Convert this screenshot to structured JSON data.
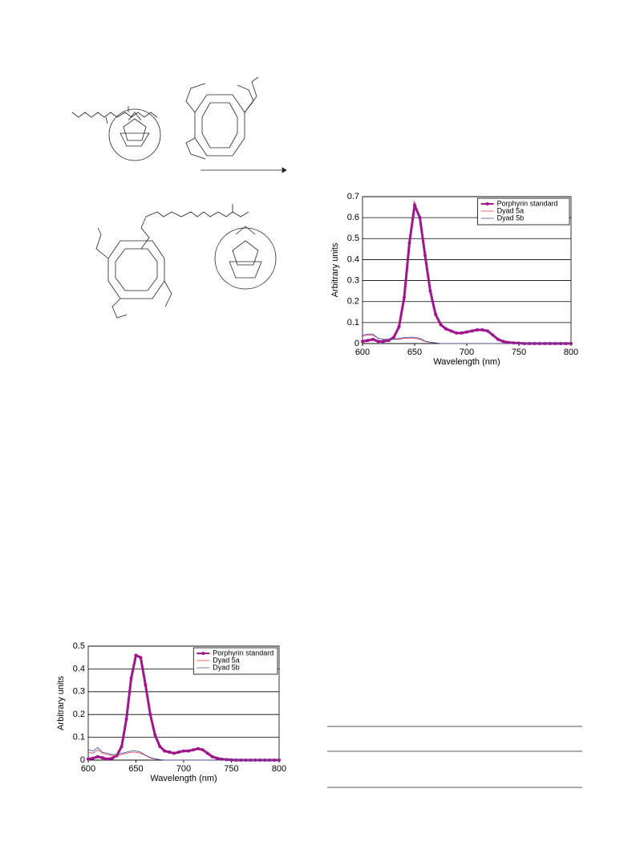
{
  "chart_data": [
    {
      "type": "line",
      "xlabel": "Wavelength (nm)",
      "ylabel": "Arbitrary units",
      "x": [
        600,
        605,
        610,
        615,
        620,
        625,
        630,
        635,
        640,
        645,
        650,
        655,
        660,
        665,
        670,
        675,
        680,
        685,
        690,
        695,
        700,
        705,
        710,
        715,
        720,
        725,
        730,
        735,
        740,
        745,
        750,
        755,
        760,
        765,
        770,
        775,
        780,
        785,
        790,
        795,
        800
      ],
      "series": [
        {
          "name": "Porphyrin standard",
          "color": "#a0148c",
          "markers": true,
          "values": [
            0.01,
            0.015,
            0.02,
            0.01,
            0.01,
            0.015,
            0.03,
            0.08,
            0.22,
            0.48,
            0.66,
            0.6,
            0.42,
            0.25,
            0.14,
            0.09,
            0.07,
            0.06,
            0.05,
            0.05,
            0.055,
            0.06,
            0.065,
            0.065,
            0.06,
            0.04,
            0.02,
            0.01,
            0.005,
            0.003,
            0.002,
            0,
            0,
            0,
            0,
            0,
            0,
            0,
            0,
            0,
            0
          ]
        },
        {
          "name": "Dyad 5a",
          "color": "#e0303a",
          "markers": false,
          "values": [
            0.035,
            0.04,
            0.04,
            0.025,
            0.02,
            0.02,
            0.02,
            0.02,
            0.025,
            0.025,
            0.025,
            0.02,
            0.01,
            0.005,
            0.003,
            0,
            0,
            0,
            0,
            0,
            0,
            0,
            0,
            0,
            0,
            0,
            0,
            0,
            0,
            0,
            0,
            0,
            0,
            0,
            0,
            0,
            0,
            0,
            0,
            0,
            0
          ]
        },
        {
          "name": "Dyad 5b",
          "color": "#4050b0",
          "markers": false,
          "values": [
            0.04,
            0.045,
            0.045,
            0.025,
            0.02,
            0.02,
            0.02,
            0.025,
            0.028,
            0.03,
            0.03,
            0.025,
            0.012,
            0.006,
            0.003,
            0,
            0,
            0,
            0,
            0,
            0,
            0,
            0,
            0,
            0,
            0,
            0,
            0,
            0,
            0,
            0,
            0,
            0,
            0,
            0,
            0,
            0,
            0,
            0,
            0,
            0
          ]
        }
      ],
      "xlim": [
        600,
        800
      ],
      "xticks": [
        600,
        650,
        700,
        750,
        800
      ],
      "ylim": [
        0,
        0.7
      ],
      "yticks": [
        0,
        0.1,
        0.2,
        0.3,
        0.4,
        0.5,
        0.6,
        0.7
      ],
      "grid": true,
      "legend": "upper right"
    },
    {
      "type": "line",
      "xlabel": "Wavelength (nm)",
      "ylabel": "Arbitrary units",
      "x": [
        600,
        605,
        610,
        615,
        620,
        625,
        630,
        635,
        640,
        645,
        650,
        655,
        660,
        665,
        670,
        675,
        680,
        685,
        690,
        695,
        700,
        705,
        710,
        715,
        720,
        725,
        730,
        735,
        740,
        745,
        750,
        755,
        760,
        765,
        770,
        775,
        780,
        785,
        790,
        795,
        800
      ],
      "series": [
        {
          "name": "Porphyrin standard",
          "color": "#a0148c",
          "markers": true,
          "values": [
            0.005,
            0.008,
            0.015,
            0.01,
            0.005,
            0.008,
            0.02,
            0.06,
            0.18,
            0.36,
            0.46,
            0.45,
            0.33,
            0.2,
            0.11,
            0.06,
            0.04,
            0.035,
            0.03,
            0.035,
            0.04,
            0.04,
            0.045,
            0.05,
            0.045,
            0.03,
            0.015,
            0.008,
            0.004,
            0.002,
            0.001,
            0,
            0,
            0,
            0,
            0,
            0,
            0,
            0,
            0,
            0
          ]
        },
        {
          "name": "Dyad 5a",
          "color": "#e0303a",
          "markers": false,
          "values": [
            0.035,
            0.03,
            0.045,
            0.03,
            0.025,
            0.02,
            0.02,
            0.025,
            0.03,
            0.035,
            0.035,
            0.03,
            0.02,
            0.01,
            0.005,
            0.002,
            0,
            0,
            0,
            0,
            0,
            0,
            0,
            0,
            0,
            0,
            0,
            0,
            0,
            0,
            0,
            0,
            0,
            0,
            0,
            0,
            0,
            0,
            0,
            0,
            0
          ]
        },
        {
          "name": "Dyad 5b",
          "color": "#4050b0",
          "markers": false,
          "values": [
            0.045,
            0.04,
            0.055,
            0.035,
            0.03,
            0.025,
            0.025,
            0.03,
            0.035,
            0.04,
            0.04,
            0.035,
            0.022,
            0.012,
            0.006,
            0.002,
            0,
            0,
            0,
            0,
            0,
            0,
            0,
            0,
            0,
            0,
            0,
            0,
            0,
            0,
            0,
            0,
            0,
            0,
            0,
            0,
            0,
            0,
            0,
            0,
            0
          ]
        }
      ],
      "xlim": [
        600,
        800
      ],
      "xticks": [
        600,
        650,
        700,
        750,
        800
      ],
      "ylim": [
        0,
        0.5
      ],
      "yticks": [
        0,
        0.1,
        0.2,
        0.3,
        0.4,
        0.5
      ],
      "grid": true,
      "legend": "upper right"
    }
  ]
}
